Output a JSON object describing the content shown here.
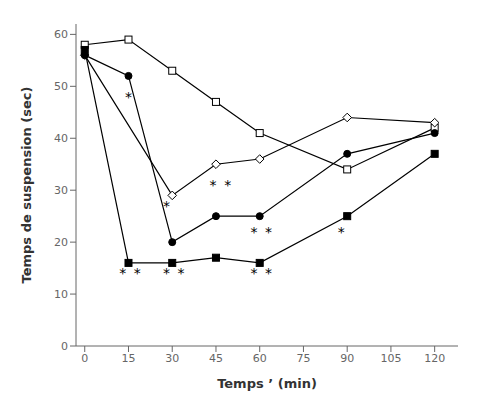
{
  "chart_data": {
    "type": "line",
    "x": [
      0,
      15,
      30,
      45,
      60,
      90,
      120
    ],
    "series": [
      {
        "values": [
          58,
          59,
          53,
          47,
          41,
          34,
          42
        ],
        "marker": "open_square",
        "color": "#000000"
      },
      {
        "values": [
          56,
          null,
          29,
          35,
          36,
          44,
          43
        ],
        "marker": "open_diamond",
        "color": "#000000"
      },
      {
        "values": [
          56,
          52,
          20,
          25,
          25,
          37,
          41
        ],
        "marker": "filled_circle",
        "color": "#000000"
      },
      {
        "values": [
          57,
          16,
          16,
          17,
          16,
          25,
          37
        ],
        "marker": "filled_square",
        "color": "#000000"
      }
    ],
    "annotations": [
      {
        "text": "*",
        "x": 13,
        "y": 14
      },
      {
        "text": "*",
        "x": 18,
        "y": 14
      },
      {
        "text": "*",
        "x": 28,
        "y": 14
      },
      {
        "text": "*",
        "x": 33,
        "y": 14
      },
      {
        "text": "*",
        "x": 58,
        "y": 14
      },
      {
        "text": "*",
        "x": 63,
        "y": 14
      },
      {
        "text": "*",
        "x": 15,
        "y": 48
      },
      {
        "text": "*",
        "x": 28,
        "y": 27
      },
      {
        "text": "*",
        "x": 44,
        "y": 31
      },
      {
        "text": "*",
        "x": 49,
        "y": 31
      },
      {
        "text": "*",
        "x": 58,
        "y": 22
      },
      {
        "text": "*",
        "x": 63,
        "y": 22
      },
      {
        "text": "*",
        "x": 88,
        "y": 22
      }
    ],
    "xlabel": "Temps ’ (min)",
    "ylabel": "Temps de suspension (sec)",
    "xlim": [
      -3,
      128
    ],
    "ylim": [
      0,
      62
    ],
    "xticks": [
      0,
      15,
      30,
      45,
      60,
      75,
      90,
      105,
      120
    ],
    "yticks": [
      0,
      10,
      20,
      30,
      40,
      50,
      60
    ],
    "grid": false
  }
}
